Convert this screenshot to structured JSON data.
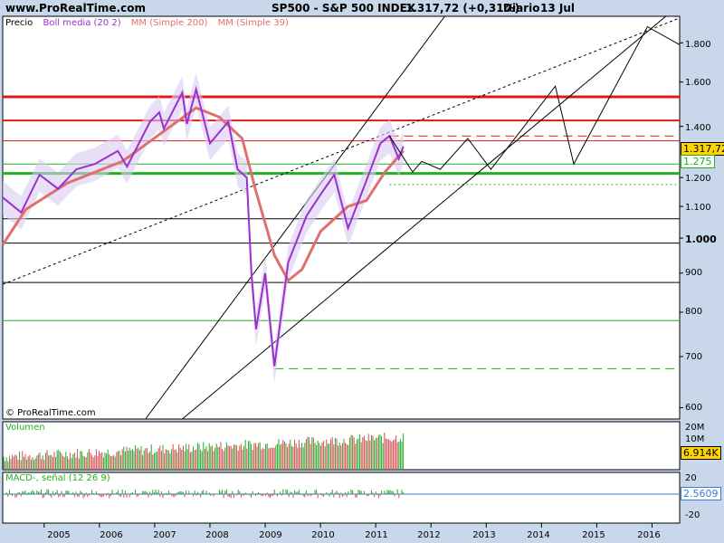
{
  "header": {
    "site": "www.ProRealTime.com",
    "title": "SP500 - S&P 500 INDEX",
    "quote": "1.317,72 (+0,31%)",
    "period": "Diario",
    "date": "13 Jul"
  },
  "legend": {
    "price": "Precio",
    "boll": "Boll media (20 2)",
    "mm200": "MM (Simple 200)",
    "mm39": "MM (Simple 39)"
  },
  "colors": {
    "background": "#c8d7ea",
    "boll": "#9b2fd0",
    "mm200": "#e07070",
    "mm39": "#e07070",
    "support_green": "#21b021",
    "resistance_red": "#e01818",
    "volume_up": "#2aa82a",
    "volume_down": "#d05050",
    "macd": "#2aa82a"
  },
  "copyright": "© ProRealTime.com",
  "panels": {
    "volume_label": "Volumen",
    "macd_label": "MACD-, señal (12 26 9)"
  },
  "price_axis": {
    "labels": [
      "1.800",
      "1.600",
      "1.400",
      "1.200",
      "1.100",
      "1.000",
      "900",
      "800",
      "700",
      "600"
    ],
    "scale": "log"
  },
  "volume_axis": {
    "labels": [
      "20M",
      "10M"
    ]
  },
  "macd_axis": {
    "labels": [
      "20",
      "-20"
    ]
  },
  "tags": {
    "last_price": "1.317,72",
    "level_1275": "1.275",
    "volume_last": "6.914K",
    "macd_last": "2.5609"
  },
  "x_axis": {
    "labels": [
      "2005",
      "2006",
      "2007",
      "2008",
      "2009",
      "2010",
      "2011",
      "2012",
      "2013",
      "2014",
      "2015",
      "2016"
    ]
  },
  "chart_data": {
    "type": "line",
    "title": "SP500 - S&P 500 INDEX",
    "xlabel": "",
    "ylabel": "",
    "ylim": [
      580,
      1950
    ],
    "x_range": [
      "2004-04",
      "2016-07"
    ],
    "series": [
      {
        "name": "Precio",
        "points": [
          [
            "2004-04",
            1130
          ],
          [
            "2004-08",
            1080
          ],
          [
            "2004-12",
            1210
          ],
          [
            "2005-04",
            1160
          ],
          [
            "2005-08",
            1230
          ],
          [
            "2005-12",
            1250
          ],
          [
            "2006-05",
            1300
          ],
          [
            "2006-07",
            1240
          ],
          [
            "2006-12",
            1420
          ],
          [
            "2007-02",
            1460
          ],
          [
            "2007-03",
            1390
          ],
          [
            "2007-07",
            1550
          ],
          [
            "2007-08",
            1410
          ],
          [
            "2007-10",
            1565
          ],
          [
            "2008-01",
            1330
          ],
          [
            "2008-05",
            1420
          ],
          [
            "2008-07",
            1230
          ],
          [
            "2008-09",
            1200
          ],
          [
            "2008-10",
            900
          ],
          [
            "2008-11",
            760
          ],
          [
            "2009-01",
            900
          ],
          [
            "2009-03",
            680
          ],
          [
            "2009-06",
            930
          ],
          [
            "2009-10",
            1070
          ],
          [
            "2010-01",
            1140
          ],
          [
            "2010-04",
            1210
          ],
          [
            "2010-07",
            1030
          ],
          [
            "2010-11",
            1190
          ],
          [
            "2011-02",
            1330
          ],
          [
            "2011-04",
            1360
          ],
          [
            "2011-06",
            1270
          ],
          [
            "2011-07",
            1317.72
          ]
        ]
      },
      {
        "name": "MM (Simple 200)",
        "points": [
          [
            "2004-04",
            980
          ],
          [
            "2004-09",
            1090
          ],
          [
            "2005-06",
            1180
          ],
          [
            "2006-06",
            1260
          ],
          [
            "2007-03",
            1380
          ],
          [
            "2007-10",
            1480
          ],
          [
            "2008-03",
            1440
          ],
          [
            "2008-08",
            1350
          ],
          [
            "2008-11",
            1150
          ],
          [
            "2009-03",
            950
          ],
          [
            "2009-06",
            880
          ],
          [
            "2009-09",
            910
          ],
          [
            "2010-01",
            1020
          ],
          [
            "2010-07",
            1100
          ],
          [
            "2010-11",
            1120
          ],
          [
            "2011-03",
            1220
          ],
          [
            "2011-07",
            1300
          ]
        ]
      }
    ],
    "projection": [
      [
        "2011-04",
        1360
      ],
      [
        "2011-09",
        1220
      ],
      [
        "2011-11",
        1260
      ],
      [
        "2012-03",
        1230
      ],
      [
        "2012-09",
        1350
      ],
      [
        "2013-02",
        1230
      ],
      [
        "2014-04",
        1580
      ],
      [
        "2014-08",
        1250
      ],
      [
        "2015-12",
        1890
      ],
      [
        "2016-07",
        1790
      ]
    ],
    "horizontal_levels": [
      {
        "value": 1530,
        "color": "#e01818",
        "width": 3
      },
      {
        "value": 1425,
        "color": "#e01818",
        "width": 2
      },
      {
        "value": 1340,
        "color": "#e01818",
        "width": 1
      },
      {
        "value": 1360,
        "color": "#e01818",
        "width": 1,
        "dashed": true
      },
      {
        "value": 1215,
        "color": "#21b021",
        "width": 3
      },
      {
        "value": 1250,
        "color": "#21b021",
        "width": 1
      },
      {
        "value": 1175,
        "color": "#21b021",
        "width": 1,
        "dotted": true
      },
      {
        "value": 1060,
        "color": "#000000",
        "width": 1
      },
      {
        "value": 985,
        "color": "#000000",
        "width": 1
      },
      {
        "value": 875,
        "color": "#000000",
        "width": 1
      },
      {
        "value": 780,
        "color": "#21b021",
        "width": 1
      },
      {
        "value": 675,
        "color": "#21b021",
        "width": 1,
        "dashed": true
      }
    ],
    "trend_lines": [
      [
        [
          "2006-11",
          580
        ],
        [
          "2012-04",
          1950
        ]
      ],
      [
        [
          "2007-07",
          580
        ],
        [
          "2016-04",
          1950
        ]
      ],
      [
        [
          "2004-04",
          870
        ],
        [
          "2016-07",
          1940
        ]
      ]
    ]
  }
}
